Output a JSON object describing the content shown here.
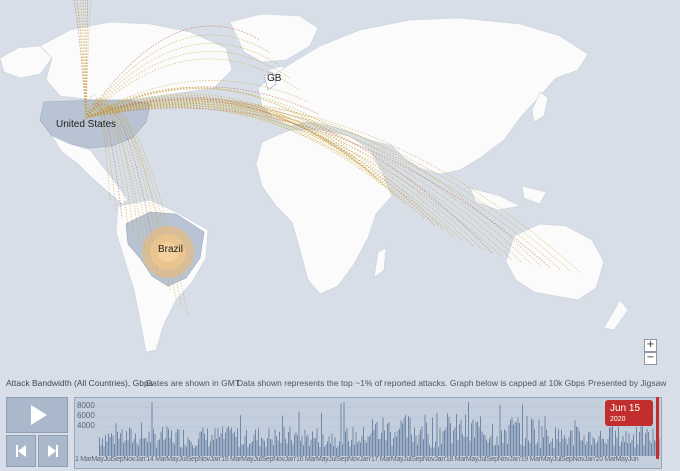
{
  "map": {
    "countries": {
      "us": "United States",
      "gb": "GB",
      "br": "Brazil"
    },
    "zoom_in": "+",
    "zoom_out": "−"
  },
  "infobar": {
    "title": "Attack Bandwidth (All Countries), Gbps",
    "dates_note": "Dates are shown in GMT",
    "data_note": "Data shown represents the top ~1% of reported attacks. Graph below is capped at 10k Gbps",
    "presented_by": "Presented by Jigsaw"
  },
  "timeline": {
    "y_ticks": [
      "8000",
      "6000",
      "4000"
    ],
    "current_date": "Jun 15",
    "current_year": "2020",
    "month_ticks": "1 MarMayJulSepNovJan'14 MarMayJulSepNovJan'15 MarMayJulSepNovJan'16 MarMayJulSepNovJan'17 MarMayJulSepNovJan'18 MarMayJulSepNovJan'19 MarMayJulSepNovJan'20 MarMayJun"
  },
  "colors": {
    "land": "#fbfbfb",
    "ocean": "#d7dee8",
    "highlight": "#b8c3d3",
    "arc": "#c8a83c",
    "arc_hot": "#c45a3a",
    "accent": "#c22d2d"
  },
  "controls": {
    "play": "play-icon",
    "prev": "skip-back-icon",
    "next": "skip-forward-icon"
  }
}
